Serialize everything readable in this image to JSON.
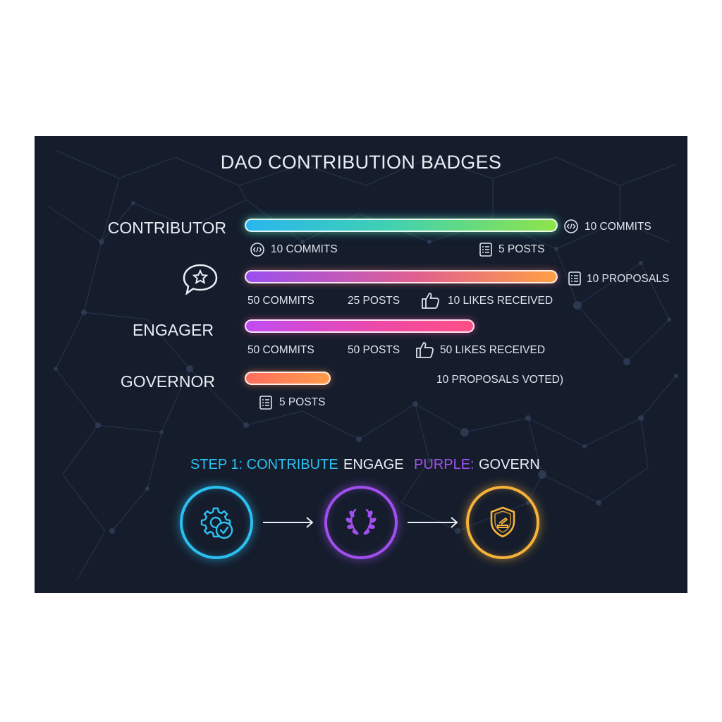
{
  "title": "DAO CONTRIBUTION BADGES",
  "badges": [
    {
      "name": "CONTRIBUTOR",
      "right_label": "10 COMMITS",
      "right_icon": "code-icon",
      "stats": [
        {
          "text": "10 COMMITS",
          "icon": "code-icon"
        },
        {
          "text": "5 POSTS",
          "icon": "document-icon"
        }
      ]
    },
    {
      "name": "",
      "name_icon": "chat-star-icon",
      "right_label": "10 PROPOSALS",
      "right_icon": "document-icon",
      "stats": [
        {
          "text": "50 COMMITS"
        },
        {
          "text": "25 POSTS"
        },
        {
          "text": "10 LIKES RECEIVED",
          "icon": "thumbs-up-icon"
        }
      ]
    },
    {
      "name": "ENGAGER",
      "stats": [
        {
          "text": "50 COMMITS"
        },
        {
          "text": "50 POSTS"
        },
        {
          "text": "50 LIKES RECEIVED",
          "icon": "thumbs-up-icon"
        }
      ]
    },
    {
      "name": "GOVERNOR",
      "right_label": "10 PROPOSALS VOTED)",
      "stats": [
        {
          "text": "5 POSTS",
          "icon": "document-icon"
        }
      ]
    }
  ],
  "steps_caption": {
    "part1": "STEP 1: CONTRIBUTE",
    "part2": "ENGAGE",
    "part3": "PURPLE:",
    "part4": "GOVERN"
  },
  "steps": [
    {
      "icon": "gear-check-icon",
      "color": "#2cc0f2"
    },
    {
      "icon": "laurel-wreath-icon",
      "color": "#a24ff0"
    },
    {
      "icon": "shield-ballot-icon",
      "color": "#f7b23b"
    }
  ],
  "colors": {
    "background": "#151d2c",
    "cyan": "#2cc0f2",
    "purple": "#a24ff0",
    "gold": "#f7b23b",
    "text": "#e9eef5"
  }
}
